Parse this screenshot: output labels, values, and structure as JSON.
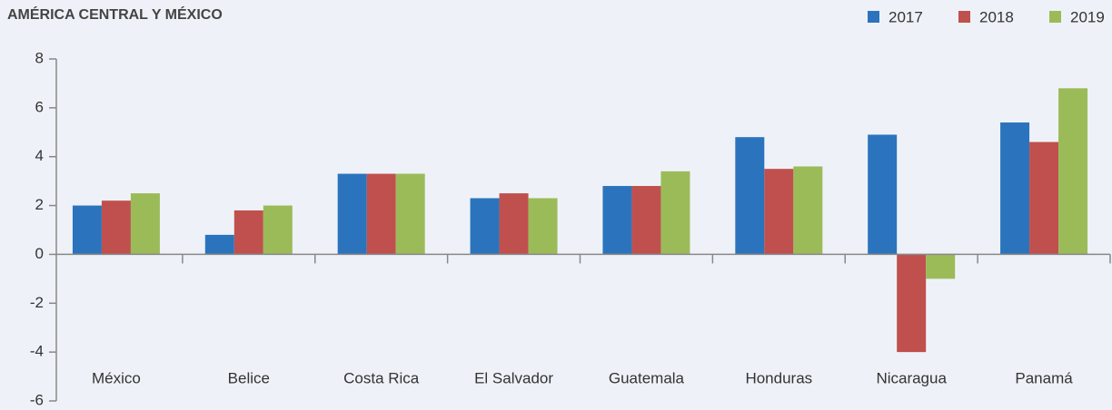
{
  "chart_data": {
    "type": "bar",
    "title": "AMÉRICA CENTRAL Y MÉXICO",
    "categories": [
      "México",
      "Belice",
      "Costa Rica",
      "El Salvador",
      "Guatemala",
      "Honduras",
      "Nicaragua",
      "Panamá"
    ],
    "series": [
      {
        "name": "2017",
        "color": "#2b74bd",
        "values": [
          2.0,
          0.8,
          3.3,
          2.3,
          2.8,
          4.8,
          4.9,
          5.4
        ]
      },
      {
        "name": "2018",
        "color": "#c0504d",
        "values": [
          2.2,
          1.8,
          3.3,
          2.5,
          2.8,
          3.5,
          -4.0,
          4.6
        ]
      },
      {
        "name": "2019",
        "color": "#9bbb59",
        "values": [
          2.5,
          2.0,
          3.3,
          2.3,
          3.4,
          3.6,
          -1.0,
          6.8
        ]
      }
    ],
    "ylim": [
      -6,
      8
    ],
    "yticks": [
      -6,
      -4,
      -2,
      0,
      2,
      4,
      6,
      8
    ],
    "grid": false,
    "legend": "top-right"
  }
}
